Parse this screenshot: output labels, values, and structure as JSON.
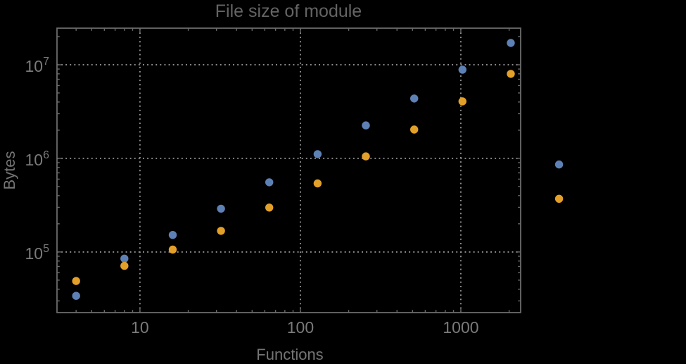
{
  "chart_data": {
    "type": "scatter",
    "title": "File size of module",
    "xlabel": "Functions",
    "ylabel": "Bytes",
    "x_scale": "log",
    "y_scale": "log",
    "xlim": [
      3.04,
      2360
    ],
    "ylim": [
      22500,
      24600000
    ],
    "grid": "dotted lines at decade ticks, clipped to frame",
    "legend": "none",
    "x_major_ticks": [
      10,
      100,
      1000
    ],
    "x_tick_labels": [
      "10",
      "100",
      "1000"
    ],
    "y_major_ticks": [
      100000,
      1000000,
      10000000
    ],
    "y_tick_labels": [
      {
        "base": "10",
        "exp": "5"
      },
      {
        "base": "10",
        "exp": "6"
      },
      {
        "base": "10",
        "exp": "7"
      }
    ],
    "series": [
      {
        "name": "blue-series",
        "color": "#5E81B5",
        "points": [
          [
            4,
            34000
          ],
          [
            8,
            85000
          ],
          [
            16,
            152000
          ],
          [
            32,
            290000
          ],
          [
            64,
            555000
          ],
          [
            128,
            1110000
          ],
          [
            256,
            2250000
          ],
          [
            512,
            4360000
          ],
          [
            1024,
            8850000
          ],
          [
            2048,
            17100000
          ],
          [
            4096,
            860000
          ]
        ]
      },
      {
        "name": "orange-series",
        "color": "#E3A029",
        "points": [
          [
            4,
            49000
          ],
          [
            8,
            71000
          ],
          [
            16,
            106000
          ],
          [
            32,
            168000
          ],
          [
            64,
            298000
          ],
          [
            128,
            540000
          ],
          [
            256,
            1050000
          ],
          [
            512,
            2030000
          ],
          [
            1024,
            4060000
          ],
          [
            2048,
            8000000
          ],
          [
            4096,
            370000
          ]
        ]
      }
    ]
  },
  "styles": {
    "background_color": "#000000",
    "frame_color": "#6B6B6B",
    "grid_color": "#909090",
    "tick_color": "#6B6B6B",
    "tick_label_color": "#7A7A7A",
    "axis_label_color": "#757575",
    "title_color": "#646464"
  }
}
